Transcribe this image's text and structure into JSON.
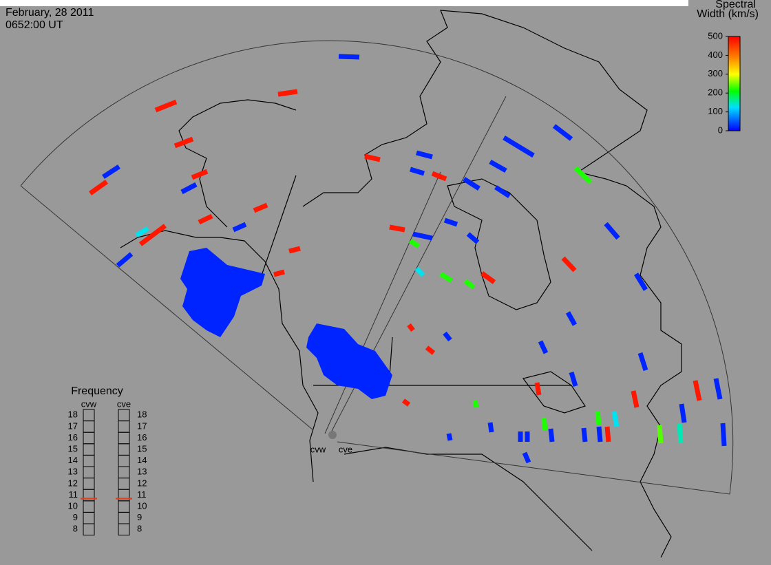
{
  "header": {
    "date": "February, 28 2011",
    "time": "0652:00 UT"
  },
  "colorbar": {
    "title": [
      "Spectral",
      "Width (km/s)"
    ],
    "ticks": [
      0,
      100,
      200,
      300,
      400,
      500
    ]
  },
  "frequency": {
    "title": "Frequency",
    "ticks": [
      18,
      17,
      16,
      15,
      14,
      13,
      12,
      11,
      10,
      9,
      8
    ],
    "radars": [
      {
        "name": "cvw",
        "value": 10.7
      },
      {
        "name": "cve",
        "value": 10.7
      }
    ]
  },
  "sites": [
    "cvw",
    "cve"
  ],
  "regions": [
    20,
    20
  ],
  "cells": [
    20,
    480,
    480,
    480,
    20,
    480,
    20,
    480,
    480,
    480,
    480,
    130,
    20,
    20,
    480,
    480,
    480,
    20,
    480,
    20,
    480,
    20,
    20,
    220,
    20,
    20,
    20,
    20,
    20,
    480,
    20,
    20,
    20,
    20,
    480,
    20,
    480,
    20,
    20,
    240,
    150,
    20,
    480,
    20,
    20,
    220,
    130,
    20,
    480,
    220,
    20,
    480,
    220,
    220,
    20,
    480,
    480,
    20,
    220,
    130,
    20,
    20,
    20,
    220,
    20,
    20,
    480
  ]
}
